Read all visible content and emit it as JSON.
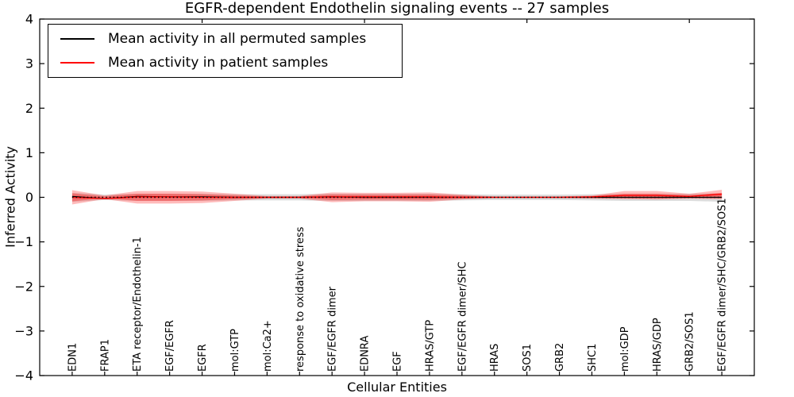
{
  "figure": {
    "title": "EGFR-dependent Endothelin signaling events -- 27 samples",
    "xlabel": "Cellular Entities",
    "ylabel": "Inferred Activity"
  },
  "legend": {
    "entries": [
      {
        "label": "Mean activity in all permuted samples",
        "color": "#000000"
      },
      {
        "label": "Mean activity in patient samples",
        "color": "#ff0000"
      }
    ]
  },
  "chart_data": {
    "type": "line",
    "title": "EGFR-dependent Endothelin signaling events -- 27 samples",
    "xlabel": "Cellular Entities",
    "ylabel": "Inferred Activity",
    "ylim": [
      -4,
      4
    ],
    "yticks": [
      -4,
      -3,
      -2,
      -1,
      0,
      1,
      2,
      3,
      4
    ],
    "grid": false,
    "legend_position": "upper left",
    "categories": [
      "EDN1",
      "FRAP1",
      "ETA receptor/Endothelin-1",
      "EGF/EGFR",
      "EGFR",
      "mol:GTP",
      "mol:Ca2+",
      "response to oxidative stress",
      "EGF/EGFR dimer",
      "EDNRA",
      "EGF",
      "HRAS/GTP",
      "EGF/EGFR dimer/SHC",
      "HRAS",
      "SOS1",
      "GRB2",
      "SHC1",
      "mol:GDP",
      "HRAS/GDP",
      "GRB2/SOS1",
      "EGF/EGFR dimer/SHC/GRB2/SOS1"
    ],
    "series": [
      {
        "name": "Mean activity in all permuted samples",
        "color": "#000000",
        "values": [
          0.02,
          -0.03,
          0.02,
          0.01,
          0.01,
          0.0,
          0.0,
          0.0,
          0.01,
          0.0,
          0.0,
          0.0,
          0.0,
          0.0,
          0.0,
          0.0,
          0.0,
          0.0,
          0.0,
          0.0,
          0.0
        ]
      },
      {
        "name": "Mean activity in patient samples",
        "color": "#ff0000",
        "values": [
          0.0,
          -0.03,
          0.01,
          0.01,
          0.0,
          0.0,
          0.0,
          0.0,
          0.01,
          0.01,
          0.01,
          0.01,
          0.0,
          0.0,
          0.0,
          0.0,
          0.01,
          0.04,
          0.04,
          0.02,
          0.07
        ]
      }
    ],
    "bands": [
      {
        "name": "permuted-samples-range",
        "color": "rgba(128,128,128,0.28)",
        "lower": [
          -0.1,
          -0.06,
          -0.08,
          -0.08,
          -0.08,
          -0.07,
          -0.07,
          -0.07,
          -0.08,
          -0.08,
          -0.08,
          -0.08,
          -0.07,
          -0.06,
          -0.06,
          -0.06,
          -0.07,
          -0.08,
          -0.08,
          -0.08,
          -0.1
        ],
        "upper": [
          0.1,
          0.06,
          0.08,
          0.08,
          0.08,
          0.07,
          0.07,
          0.07,
          0.08,
          0.08,
          0.08,
          0.08,
          0.07,
          0.06,
          0.06,
          0.06,
          0.07,
          0.08,
          0.08,
          0.08,
          0.09
        ]
      },
      {
        "name": "patient-samples-outer-band",
        "color": "rgba(255,30,30,0.30)",
        "lower": [
          -0.16,
          -0.04,
          -0.14,
          -0.14,
          -0.13,
          -0.08,
          -0.03,
          -0.03,
          -0.11,
          -0.09,
          -0.09,
          -0.1,
          -0.05,
          -0.02,
          -0.02,
          -0.02,
          -0.03,
          -0.04,
          -0.05,
          -0.03,
          -0.04
        ],
        "upper": [
          0.16,
          0.04,
          0.14,
          0.14,
          0.13,
          0.08,
          0.03,
          0.03,
          0.11,
          0.1,
          0.1,
          0.11,
          0.06,
          0.02,
          0.02,
          0.02,
          0.04,
          0.14,
          0.14,
          0.08,
          0.17
        ]
      },
      {
        "name": "patient-samples-inner-band",
        "color": "rgba(255,0,0,0.32)",
        "lower": [
          -0.09,
          -0.02,
          -0.08,
          -0.08,
          -0.07,
          -0.04,
          -0.015,
          -0.015,
          -0.06,
          -0.05,
          -0.05,
          -0.055,
          -0.03,
          -0.01,
          -0.01,
          -0.01,
          -0.015,
          -0.02,
          -0.025,
          -0.015,
          -0.02
        ],
        "upper": [
          0.09,
          0.02,
          0.08,
          0.08,
          0.07,
          0.04,
          0.015,
          0.015,
          0.06,
          0.055,
          0.055,
          0.06,
          0.035,
          0.01,
          0.01,
          0.01,
          0.025,
          0.08,
          0.08,
          0.045,
          0.1
        ]
      }
    ],
    "zero_line": {
      "y": 0,
      "style": "dotted",
      "color": "#000000"
    }
  }
}
